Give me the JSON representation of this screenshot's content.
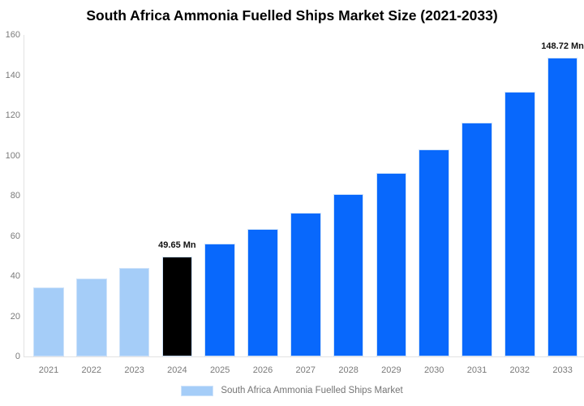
{
  "chart_data": {
    "type": "bar",
    "title": "South Africa Ammonia Fuelled Ships Market Size (2021-2033)",
    "categories": [
      "2021",
      "2022",
      "2023",
      "2024",
      "2025",
      "2026",
      "2027",
      "2028",
      "2029",
      "2030",
      "2031",
      "2032",
      "2033"
    ],
    "values": [
      34.4,
      38.9,
      44.0,
      49.65,
      56.1,
      63.3,
      71.6,
      80.8,
      91.3,
      103.1,
      116.5,
      131.6,
      148.72
    ],
    "unit": "Mn",
    "series_name": "South Africa Ammonia Fuelled Ships Market",
    "ylim": [
      0,
      160
    ],
    "ytick_step": 20,
    "grid": false,
    "legend_position": "bottom-center",
    "bar_colors": [
      "#a5cdf8",
      "#a5cdf8",
      "#a5cdf8",
      "#000000",
      "#0868fc",
      "#0868fc",
      "#0868fc",
      "#0868fc",
      "#0868fc",
      "#0868fc",
      "#0868fc",
      "#0868fc",
      "#0868fc"
    ],
    "annotations": [
      {
        "index": 3,
        "text": "49.65 Mn"
      },
      {
        "index": 12,
        "text": "148.72 Mn"
      }
    ]
  },
  "legend": {
    "label": "South Africa Ammonia Fuelled Ships Market",
    "swatch_color": "#a5cdf8"
  },
  "colors": {
    "history_bar": "#a5cdf8",
    "current_bar": "#000000",
    "forecast_bar": "#0868fc",
    "bar_border": "#cfe3fa",
    "axis_line": "#e2e2e2",
    "tick_label": "#7a7a7a",
    "title": "#000000",
    "annotation": "#111111"
  }
}
